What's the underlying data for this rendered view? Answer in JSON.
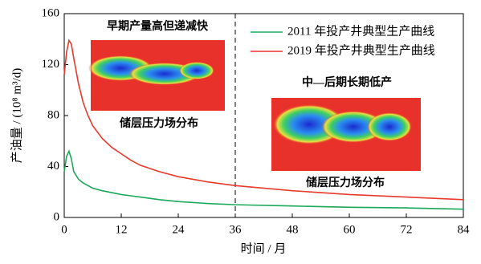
{
  "chart_data": {
    "type": "line",
    "xlabel": "时间 / 月",
    "ylabel": "产油量 / (10⁸ m³/d)",
    "x": [
      0,
      0.5,
      1,
      1.5,
      2,
      3,
      4,
      5,
      6,
      8,
      10,
      12,
      14,
      16,
      20,
      24,
      30,
      36,
      48,
      60,
      72,
      84
    ],
    "series": [
      {
        "name": "2011 年投产井典型生产曲线",
        "color": "#1aa85a",
        "values": [
          36,
          48,
          52,
          46,
          36,
          30,
          27,
          25,
          23,
          21,
          19.5,
          18,
          17,
          16,
          14,
          12.5,
          11,
          10,
          9,
          8,
          7.5,
          6.5
        ]
      },
      {
        "name": "2019 年投产井典型生产曲线",
        "color": "#e8392b",
        "values": [
          112,
          130,
          139,
          136,
          125,
          105,
          90,
          80,
          72,
          62,
          55,
          50,
          45,
          41,
          36,
          32,
          28,
          25,
          21,
          18,
          16,
          14
        ]
      }
    ],
    "xlim": [
      0,
      84
    ],
    "xticks": [
      0,
      12,
      24,
      36,
      48,
      60,
      72,
      84
    ],
    "ylim": [
      0,
      160
    ],
    "yticks": [
      0,
      40,
      80,
      120,
      160
    ],
    "vline": 36,
    "legend": "upper right",
    "annotations": [
      "早期产量高但递减快",
      "储层压力场分布",
      "中—后期长期低产",
      "储层压力场分布"
    ]
  }
}
